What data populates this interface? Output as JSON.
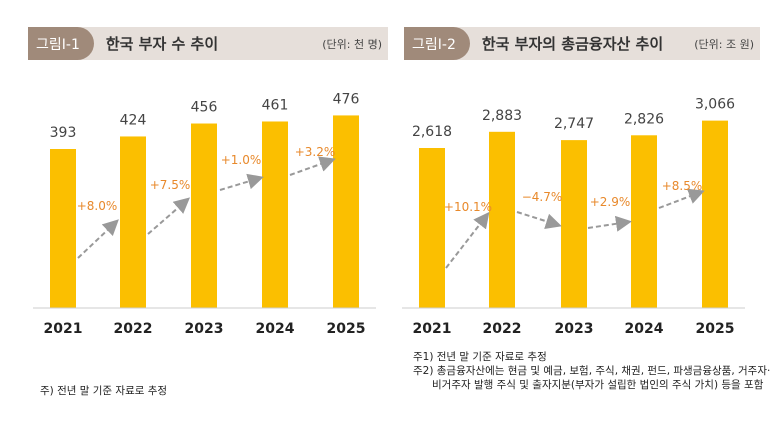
{
  "charts": [
    {
      "badge": "그림Ⅰ-1",
      "title": "한국 부자 수 추이",
      "unit": "(단위: 천 명)"
    },
    {
      "badge": "그림Ⅰ-2",
      "title": "한국 부자의 총금융자산 추이",
      "unit": "(단위: 조 원)"
    }
  ],
  "colors": {
    "bar": "#fbbf00",
    "growth": "#e8892b",
    "arrow": "#999999",
    "header_bg": "#e6dfda",
    "badge_bg": "#a08a7a"
  },
  "chart_data": [
    {
      "type": "bar",
      "title": "한국 부자 수 추이",
      "unit": "(단위: 천 명)",
      "categories": [
        "2021",
        "2022",
        "2023",
        "2024",
        "2025"
      ],
      "values": [
        393,
        424,
        456,
        461,
        476
      ],
      "value_labels": [
        "393",
        "424",
        "456",
        "461",
        "476"
      ],
      "growth_labels": [
        "+8.0%",
        "+7.5%",
        "+1.0%",
        "+3.2%"
      ]
    },
    {
      "type": "bar",
      "title": "한국 부자의 총금융자산 추이",
      "unit": "(단위: 조 원)",
      "categories": [
        "2021",
        "2022",
        "2023",
        "2024",
        "2025"
      ],
      "values": [
        2618,
        2883,
        2747,
        2826,
        3066
      ],
      "value_labels": [
        "2,618",
        "2,883",
        "2,747",
        "2,826",
        "3,066"
      ],
      "growth_labels": [
        "+10.1%",
        "−4.7%",
        "+2.9%",
        "+8.5%"
      ]
    }
  ],
  "notes": {
    "left": "주) 전년 말 기준 자료로 추정",
    "right": [
      "주1) 전년 말 기준 자료로 추정",
      "주2) 총금융자산에는 현금 및 예금, 보험, 주식, 채권, 펀드, 파생금융상품, 거주자·",
      "비거주자 발행 주식 및 출자지분(부자가 설립한 법인의 주식 가치) 등을 포함"
    ]
  }
}
